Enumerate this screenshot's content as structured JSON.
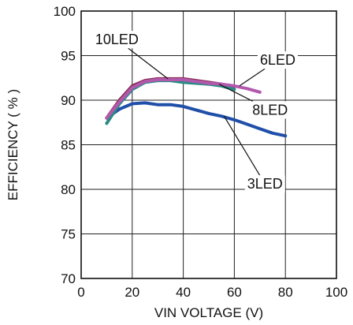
{
  "chart_data": {
    "type": "line",
    "xlabel": "VIN  VOLTAGE (V)",
    "ylabel": "EFFICIENCY ( % )",
    "xlim": [
      0,
      100
    ],
    "ylim": [
      70,
      100
    ],
    "xticks": [
      "0",
      "20",
      "40",
      "60",
      "80",
      "100"
    ],
    "yticks": [
      "70",
      "75",
      "80",
      "85",
      "90",
      "95",
      "100"
    ],
    "grid": true,
    "series": [
      {
        "name": "3LED",
        "color": "#1f4fa8",
        "x": [
          10,
          15,
          20,
          25,
          30,
          35,
          40,
          45,
          50,
          55,
          60,
          65,
          70,
          75,
          80
        ],
        "y": [
          88.0,
          89.0,
          89.6,
          89.7,
          89.5,
          89.5,
          89.3,
          88.9,
          88.5,
          88.2,
          87.8,
          87.3,
          86.8,
          86.3,
          86.0
        ]
      },
      {
        "name": "10LED",
        "color": "#8b2e55",
        "x": [
          10,
          15,
          20,
          25,
          30,
          35,
          40,
          45,
          50,
          55,
          60
        ],
        "y": [
          88.0,
          90.0,
          91.6,
          92.2,
          92.4,
          92.4,
          92.4,
          92.2,
          92.0,
          91.8,
          91.5
        ]
      },
      {
        "name": "8LED",
        "color": "#2a8a84",
        "x": [
          10,
          15,
          20,
          25,
          30,
          35,
          40,
          45,
          50,
          55,
          60
        ],
        "y": [
          87.4,
          89.6,
          91.2,
          92.0,
          92.2,
          92.2,
          92.0,
          91.9,
          91.8,
          91.6,
          91.2
        ]
      },
      {
        "name": "6LED",
        "color": "#b259ad",
        "x": [
          10,
          15,
          20,
          25,
          30,
          35,
          40,
          45,
          50,
          55,
          60,
          65,
          70
        ],
        "y": [
          88.0,
          89.8,
          91.4,
          92.1,
          92.3,
          92.3,
          92.3,
          92.1,
          91.9,
          91.8,
          91.6,
          91.3,
          90.9
        ]
      }
    ],
    "callouts": [
      {
        "label": "10LED",
        "series": "10LED",
        "text_x": 14,
        "text_y": 96.8,
        "point_x": 34,
        "point_y": 92.4
      },
      {
        "label": "6LED",
        "series": "6LED",
        "text_x": 77,
        "text_y": 94.5,
        "point_x": 62,
        "point_y": 91.6
      },
      {
        "label": "8LED",
        "series": "8LED",
        "text_x": 74,
        "text_y": 88.9,
        "point_x": 54,
        "point_y": 91.8
      },
      {
        "label": "3LED",
        "series": "3LED",
        "text_x": 72,
        "text_y": 80.6,
        "point_x": 56,
        "point_y": 88.2
      }
    ]
  }
}
